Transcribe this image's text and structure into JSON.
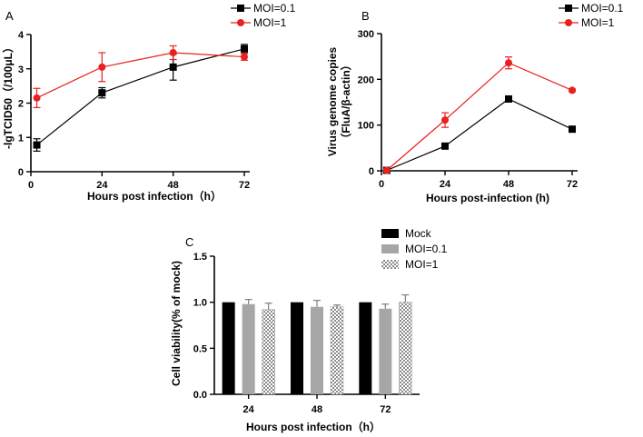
{
  "chart_data": [
    {
      "id": "A",
      "type": "line",
      "panel_label": "A",
      "xlabel": "Hours post infection（h）",
      "ylabel": "-lgTCID50（/100μL）",
      "xlim": [
        0,
        72
      ],
      "ylim": [
        0,
        4
      ],
      "xticks": [
        0,
        24,
        48,
        72
      ],
      "yticks": [
        0,
        1,
        2,
        3,
        4
      ],
      "legend_position": "top-right",
      "series": [
        {
          "name": "MOI=0.1",
          "color": "#000000",
          "marker": "square",
          "x": [
            2,
            24,
            48,
            72
          ],
          "y": [
            0.78,
            2.3,
            3.05,
            3.58
          ],
          "err": [
            0.18,
            0.15,
            0.38,
            0.13
          ]
        },
        {
          "name": "MOI=1",
          "color": "#e8211f",
          "marker": "circle",
          "x": [
            2,
            24,
            48,
            72
          ],
          "y": [
            2.15,
            3.05,
            3.47,
            3.35
          ],
          "err": [
            0.28,
            0.42,
            0.2,
            0.1
          ]
        }
      ]
    },
    {
      "id": "B",
      "type": "line",
      "panel_label": "B",
      "xlabel": "Hours post-infection (h)",
      "ylabel": "Virus genome copies",
      "ylabel2": "（FluA/β-actin）",
      "xlim": [
        0,
        72
      ],
      "ylim": [
        0,
        300
      ],
      "xticks": [
        0,
        24,
        48,
        72
      ],
      "yticks": [
        0,
        100,
        200,
        300
      ],
      "legend_position": "top-right",
      "series": [
        {
          "name": "MOI=0.1",
          "color": "#000000",
          "marker": "square",
          "x": [
            2,
            24,
            48,
            72
          ],
          "y": [
            1,
            54,
            157,
            91
          ],
          "err": [
            0,
            3,
            6,
            3
          ]
        },
        {
          "name": "MOI=1",
          "color": "#e8211f",
          "marker": "circle",
          "x": [
            2,
            24,
            48,
            72
          ],
          "y": [
            1,
            111,
            236,
            176
          ],
          "err": [
            0,
            16,
            13,
            3
          ]
        }
      ]
    },
    {
      "id": "C",
      "type": "bar",
      "panel_label": "C",
      "xlabel": "Hours post infection（h）",
      "ylabel": "Cell viability(% of mock)",
      "ylim": [
        0,
        1.5
      ],
      "yticks": [
        "0.0",
        "0.5",
        "1.0",
        "1.5"
      ],
      "categories": [
        "24",
        "48",
        "72"
      ],
      "legend_position": "top",
      "series": [
        {
          "name": "Mock",
          "fill": "#000000",
          "pattern": "solid",
          "values": [
            1.0,
            1.0,
            1.0
          ],
          "err": [
            0,
            0,
            0
          ]
        },
        {
          "name": "MOI=0.1",
          "fill": "#a6a6a6",
          "pattern": "solid",
          "values": [
            0.98,
            0.95,
            0.93
          ],
          "err": [
            0.05,
            0.07,
            0.05
          ]
        },
        {
          "name": "MOI=1",
          "fill": "#c8c8c8",
          "pattern": "checker",
          "values": [
            0.92,
            0.95,
            1.0
          ],
          "err": [
            0.07,
            0.02,
            0.08
          ]
        }
      ]
    }
  ]
}
